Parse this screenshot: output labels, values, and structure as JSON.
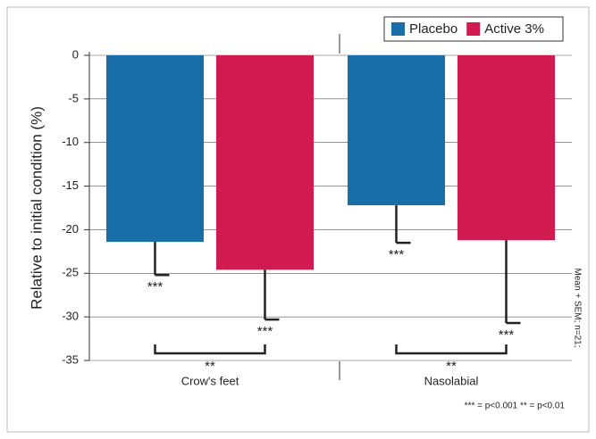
{
  "chart_data": {
    "type": "bar",
    "y_label": "Relative to initial condition (%)",
    "categories": [
      "Crow's feet",
      "Nasolabial"
    ],
    "series": [
      {
        "name": "Placebo",
        "color": "#1a6ea8",
        "values": [
          -21.4,
          -17.2
        ],
        "errors": [
          3.8,
          4.3
        ],
        "annotations": [
          "***",
          "***"
        ]
      },
      {
        "name": "Active 3%",
        "color": "#d11a4f",
        "values": [
          -24.6,
          -21.2
        ],
        "errors": [
          5.7,
          9.5
        ],
        "annotations": [
          "***",
          "***"
        ]
      }
    ],
    "group_annotations": [
      "**",
      "**"
    ],
    "annotation_color": "#1a6ea8",
    "ylim": [
      -35,
      0
    ],
    "yticks": [
      0,
      -5,
      -10,
      -15,
      -20,
      -25,
      -30,
      -35
    ],
    "grid": true,
    "legend": "upper right",
    "note": "Mean + SEM; n=21;",
    "footnote": "*** = p<0.001   ** = p<0.01"
  }
}
